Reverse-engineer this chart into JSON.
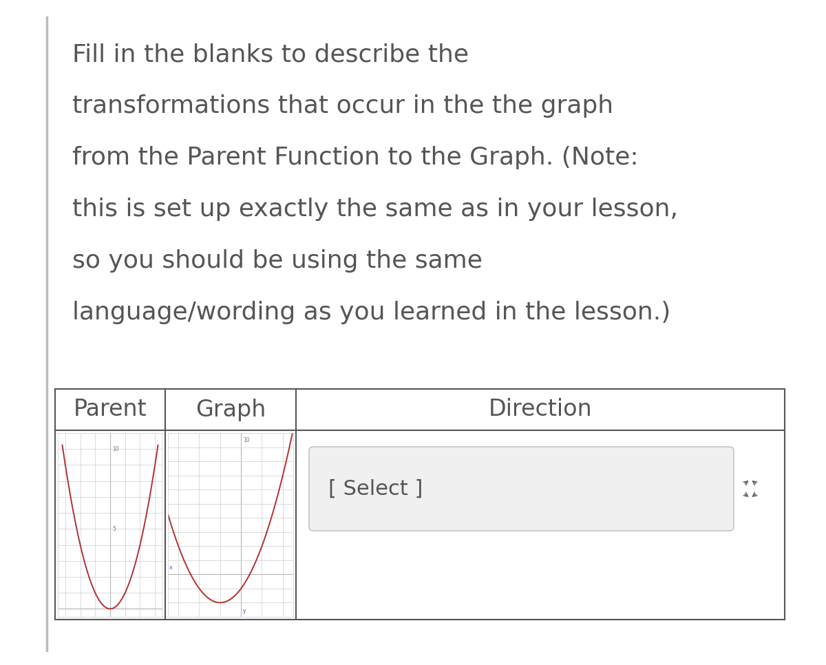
{
  "instruction_text_lines": [
    "Fill in the blanks to describe the",
    "transformations that occur in the the graph",
    "from the Parent Function to the Graph. (Note:",
    "this is set up exactly the same as in your lesson,",
    "so you should be using the same",
    "language/wording as you learned in the lesson.)"
  ],
  "header_col1": "Parent",
  "header_col2": "Graph",
  "header_col3": "Direction",
  "select_text": "[ Select ]",
  "bg_color": "#ffffff",
  "text_color": "#555555",
  "grid_color": "#cccccc",
  "axis_color": "#888888",
  "curve_color": "#b03030",
  "table_border_color": "#555555",
  "select_box_color": "#f0f0f0",
  "select_box_border": "#bbbbbb",
  "instruction_fontsize": 26,
  "header_fontsize": 24,
  "select_fontsize": 22,
  "direction_fontsize": 24
}
